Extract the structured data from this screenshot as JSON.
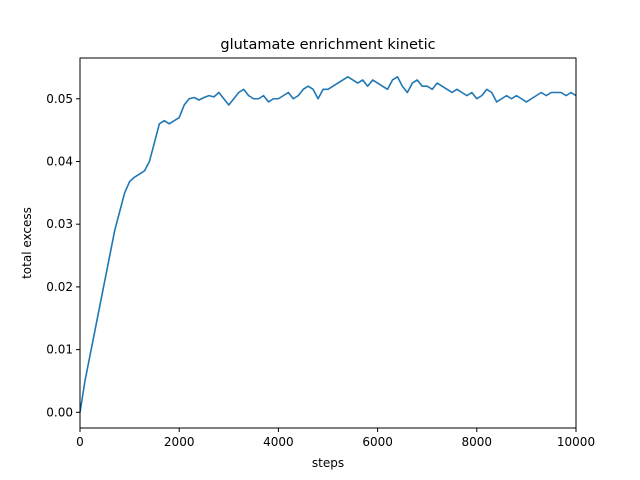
{
  "chart_data": {
    "type": "line",
    "title": "glutamate enrichment kinetic",
    "xlabel": "steps",
    "ylabel": "total excess",
    "xlim": [
      0,
      10000
    ],
    "ylim": [
      -0.0025,
      0.0565
    ],
    "grid": false,
    "legend": "none",
    "xticks": [
      0,
      2000,
      4000,
      6000,
      8000,
      10000
    ],
    "xtick_labels": [
      "0",
      "2000",
      "4000",
      "6000",
      "8000",
      "10000"
    ],
    "yticks": [
      0.0,
      0.01,
      0.02,
      0.03,
      0.04,
      0.05
    ],
    "ytick_labels": [
      "0.00",
      "0.01",
      "0.02",
      "0.03",
      "0.04",
      "0.05"
    ],
    "series": [
      {
        "color": "#1f77b4",
        "x": [
          0,
          100,
          200,
          300,
          400,
          500,
          600,
          700,
          800,
          900,
          1000,
          1100,
          1200,
          1300,
          1400,
          1500,
          1600,
          1700,
          1800,
          1900,
          2000,
          2100,
          2200,
          2300,
          2400,
          2500,
          2600,
          2700,
          2800,
          2900,
          3000,
          3100,
          3200,
          3300,
          3400,
          3500,
          3600,
          3700,
          3800,
          3900,
          4000,
          4100,
          4200,
          4300,
          4400,
          4500,
          4600,
          4700,
          4800,
          4900,
          5000,
          5100,
          5200,
          5300,
          5400,
          5500,
          5600,
          5700,
          5800,
          5900,
          6000,
          6100,
          6200,
          6300,
          6400,
          6500,
          6600,
          6700,
          6800,
          6900,
          7000,
          7100,
          7200,
          7300,
          7400,
          7500,
          7600,
          7700,
          7800,
          7900,
          8000,
          8100,
          8200,
          8300,
          8400,
          8500,
          8600,
          8700,
          8800,
          8900,
          9000,
          9100,
          9200,
          9300,
          9400,
          9500,
          9600,
          9700,
          9800,
          9900,
          10000
        ],
        "y": [
          0.0,
          0.005,
          0.009,
          0.013,
          0.017,
          0.021,
          0.025,
          0.029,
          0.032,
          0.035,
          0.0368,
          0.0375,
          0.038,
          0.0385,
          0.04,
          0.043,
          0.046,
          0.0465,
          0.046,
          0.0465,
          0.047,
          0.049,
          0.05,
          0.0502,
          0.0498,
          0.0502,
          0.0505,
          0.0503,
          0.051,
          0.05,
          0.049,
          0.05,
          0.051,
          0.0515,
          0.0505,
          0.05,
          0.05,
          0.0505,
          0.0495,
          0.05,
          0.05,
          0.0505,
          0.051,
          0.05,
          0.0505,
          0.0515,
          0.052,
          0.0515,
          0.05,
          0.0515,
          0.0515,
          0.052,
          0.0525,
          0.053,
          0.0535,
          0.053,
          0.0525,
          0.053,
          0.052,
          0.053,
          0.0525,
          0.052,
          0.0515,
          0.053,
          0.0535,
          0.052,
          0.051,
          0.0525,
          0.053,
          0.052,
          0.052,
          0.0515,
          0.0525,
          0.052,
          0.0515,
          0.051,
          0.0515,
          0.051,
          0.0505,
          0.051,
          0.05,
          0.0505,
          0.0515,
          0.051,
          0.0495,
          0.05,
          0.0505,
          0.05,
          0.0505,
          0.05,
          0.0495,
          0.05,
          0.0505,
          0.051,
          0.0505,
          0.051,
          0.051,
          0.051,
          0.0505,
          0.051,
          0.0505
        ]
      }
    ]
  }
}
